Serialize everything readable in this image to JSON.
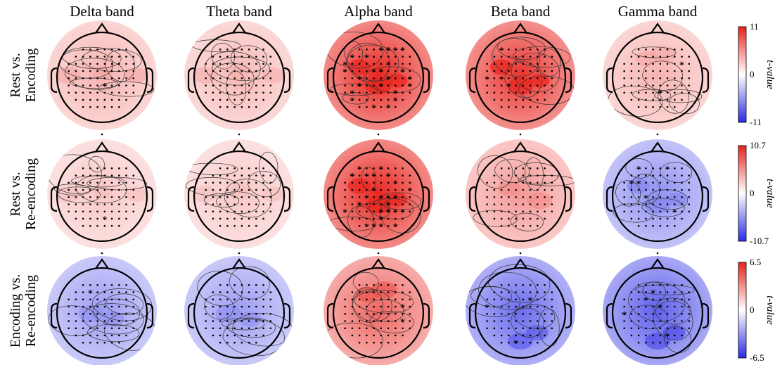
{
  "figure": {
    "bands": [
      "Delta band",
      "Theta band",
      "Alpha band",
      "Beta band",
      "Gamma band"
    ],
    "rows": [
      {
        "title_lines": [
          "Rest vs.",
          "Encoding"
        ],
        "colorbar": {
          "max": "11",
          "zero": "0",
          "min": "-11",
          "title": "t-value"
        },
        "maps": [
          {
            "tint": "red",
            "strength": 0.3,
            "stars": 1,
            "pattern": "temporal-bilateral"
          },
          {
            "tint": "red",
            "strength": 0.28,
            "stars": 0,
            "pattern": "temporal-bilateral"
          },
          {
            "tint": "red",
            "strength": 0.85,
            "stars": 28,
            "pattern": "diffuse"
          },
          {
            "tint": "red",
            "strength": 0.8,
            "stars": 4,
            "pattern": "diffuse"
          },
          {
            "tint": "red",
            "strength": 0.3,
            "stars": 2,
            "pattern": "frontal"
          }
        ]
      },
      {
        "title_lines": [
          "Rest vs.",
          "Re-encoding"
        ],
        "colorbar": {
          "max": "10.7",
          "zero": "0",
          "min": "-10.7",
          "title": "t-value"
        },
        "maps": [
          {
            "tint": "red",
            "strength": 0.22,
            "stars": 1,
            "pattern": "temporal-bilateral"
          },
          {
            "tint": "red",
            "strength": 0.22,
            "stars": 0,
            "pattern": "temporal-bilateral"
          },
          {
            "tint": "red",
            "strength": 0.85,
            "stars": 30,
            "pattern": "diffuse"
          },
          {
            "tint": "red",
            "strength": 0.4,
            "stars": 0,
            "pattern": "right-central"
          },
          {
            "tint": "blue",
            "strength": 0.45,
            "stars": 6,
            "pattern": "diffuse"
          }
        ]
      },
      {
        "title_lines": [
          "Encoding vs.",
          "Re-encoding"
        ],
        "colorbar": {
          "max": "6.5",
          "zero": "0",
          "min": "-6.5",
          "title": "t-value"
        },
        "maps": [
          {
            "tint": "blue",
            "strength": 0.4,
            "stars": 1,
            "pattern": "central"
          },
          {
            "tint": "blue",
            "strength": 0.4,
            "stars": 0,
            "pattern": "central"
          },
          {
            "tint": "red",
            "strength": 0.6,
            "stars": 2,
            "pattern": "frontal"
          },
          {
            "tint": "blue",
            "strength": 0.6,
            "stars": 4,
            "pattern": "posterior"
          },
          {
            "tint": "blue",
            "strength": 0.65,
            "stars": 6,
            "pattern": "posterior"
          }
        ]
      }
    ],
    "colors": {
      "red": "#e8221c",
      "blue": "#2a2ae6",
      "neutral": "#ffffff"
    }
  }
}
